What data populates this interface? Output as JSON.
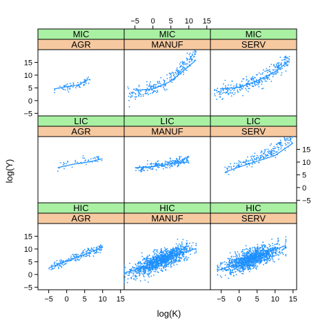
{
  "chart_data": {
    "type": "scatter",
    "layout": "3x3 trellis (lattice) panels with loess smoother",
    "xlabel": "log(K)",
    "ylabel": "log(Y)",
    "xlim": [
      -8,
      16
    ],
    "ylim": [
      -6,
      20
    ],
    "x_ticks": [
      -5,
      0,
      5,
      10,
      15
    ],
    "y_ticks": [
      -5,
      0,
      5,
      10,
      15
    ],
    "strip_colors": {
      "income": "#a9f0a3",
      "sector": "#f6c9a0"
    },
    "point_color": "#1e90ff",
    "line_color": "#1e90ff",
    "panels": [
      {
        "income": "MIC",
        "sector": "AGR",
        "n": 60,
        "x_range": [
          -3.5,
          6.5
        ],
        "intercept": 5.2,
        "slope": 0.25,
        "curve": 0.04,
        "noise": 1.0,
        "smooth": [
          [
            -3.5,
            4.6
          ],
          [
            0,
            5.5
          ],
          [
            3,
            6.0
          ],
          [
            6,
            8.3
          ]
        ]
      },
      {
        "income": "MIC",
        "sector": "MANUF",
        "n": 250,
        "x_range": [
          -7,
          12
        ],
        "intercept": 4.8,
        "slope": 0.5,
        "curve": 0.06,
        "noise": 1.6,
        "smooth": [
          [
            -5,
            4.0
          ],
          [
            0,
            4.6
          ],
          [
            5,
            7.6
          ],
          [
            10,
            13.5
          ],
          [
            12,
            16.0
          ]
        ]
      },
      {
        "income": "MIC",
        "sector": "SERV",
        "n": 300,
        "x_range": [
          -7,
          14
        ],
        "intercept": 5.0,
        "slope": 0.4,
        "curve": 0.03,
        "noise": 1.8,
        "smooth": [
          [
            -5,
            4.6
          ],
          [
            0,
            5.2
          ],
          [
            5,
            7.8
          ],
          [
            10,
            11.2
          ],
          [
            14,
            15.8
          ]
        ]
      },
      {
        "income": "LIC",
        "sector": "AGR",
        "n": 45,
        "x_range": [
          -2.5,
          10
        ],
        "intercept": 8.8,
        "slope": 0.32,
        "curve": 0.0,
        "noise": 1.1,
        "smooth": [
          [
            -2.5,
            7.8
          ],
          [
            2,
            9.2
          ],
          [
            6,
            10.0
          ],
          [
            10,
            11.3
          ]
        ]
      },
      {
        "income": "LIC",
        "sector": "MANUF",
        "n": 200,
        "x_range": [
          -5,
          10
        ],
        "intercept": 8.3,
        "slope": 0.2,
        "curve": 0.01,
        "noise": 1.0,
        "smooth": [
          [
            -5,
            7.8
          ],
          [
            0,
            8.2
          ],
          [
            5,
            9.3
          ],
          [
            10,
            10.0
          ]
        ]
      },
      {
        "income": "LIC",
        "sector": "SERV",
        "n": 200,
        "x_range": [
          -4,
          15
        ],
        "intercept": 8.6,
        "slope": 0.45,
        "curve": 0.02,
        "noise": 1.5,
        "smooth": [
          [
            -4,
            6.0
          ],
          [
            0,
            8.1
          ],
          [
            5,
            10.3
          ],
          [
            10,
            12.6
          ],
          [
            15,
            17.5
          ]
        ]
      },
      {
        "income": "HIC",
        "sector": "AGR",
        "n": 180,
        "x_range": [
          -5,
          10
        ],
        "intercept": 5.2,
        "slope": 0.55,
        "curve": 0.0,
        "noise": 1.0,
        "smooth": [
          [
            -5,
            2.6
          ],
          [
            0,
            5.2
          ],
          [
            5,
            7.9
          ],
          [
            10,
            10.8
          ]
        ]
      },
      {
        "income": "HIC",
        "sector": "MANUF",
        "n": 1200,
        "x_range": [
          -8,
          12
        ],
        "intercept": 4.3,
        "slope": 0.55,
        "curve": 0.0,
        "noise": 2.2,
        "smooth": [
          [
            -8,
            0.5
          ],
          [
            -2,
            3.2
          ],
          [
            4,
            6.5
          ],
          [
            8,
            8.5
          ],
          [
            12,
            10.2
          ]
        ]
      },
      {
        "income": "HIC",
        "sector": "SERV",
        "n": 1200,
        "x_range": [
          -6,
          13
        ],
        "intercept": 4.5,
        "slope": 0.5,
        "curve": 0.0,
        "noise": 2.2,
        "smooth": [
          [
            -6,
            1.6
          ],
          [
            0,
            4.4
          ],
          [
            5,
            7.0
          ],
          [
            13,
            11.4
          ]
        ]
      }
    ]
  }
}
